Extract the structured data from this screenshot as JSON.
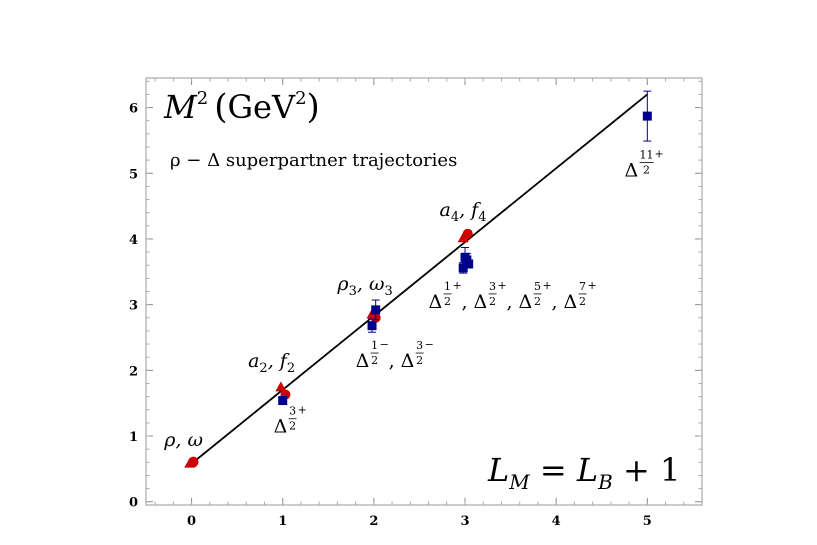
{
  "chart_data": {
    "type": "scatter",
    "title": "M²(GeV²)",
    "title_parts": {
      "symbol": "M",
      "exponent": "2",
      "unit": "GeV",
      "unit_exponent": "2"
    },
    "subtitle": "ρ − Δ superpartner trajectories",
    "formula": {
      "lhs": "L",
      "lhs_sub": "M",
      "equals": " = ",
      "rhs": "L",
      "rhs_sub": "B",
      "plus": " + 1"
    },
    "xlim": [
      -0.5,
      5.6
    ],
    "ylim": [
      -0.05,
      6.45
    ],
    "x_ticks": [
      "0",
      "1",
      "2",
      "3",
      "4",
      "5"
    ],
    "y_ticks": [
      "0",
      "1",
      "2",
      "3",
      "4",
      "5",
      "6"
    ],
    "fit_line": {
      "x": [
        0,
        5
      ],
      "y": [
        0.58,
        6.2
      ]
    },
    "series": [
      {
        "marker": "circle",
        "color": "#cc0000",
        "points": [
          {
            "x": 0.02,
            "y": 0.6
          },
          {
            "x": 0.02,
            "y": 0.61
          },
          {
            "x": 1.03,
            "y": 1.63
          },
          {
            "x": 2.02,
            "y": 2.8
          },
          {
            "x": 3.03,
            "y": 4.08
          }
        ]
      },
      {
        "marker": "triangle",
        "color": "#cc0000",
        "points": [
          {
            "x": -0.02,
            "y": 0.58
          },
          {
            "x": 0.98,
            "y": 1.74
          },
          {
            "x": 1.98,
            "y": 2.85
          },
          {
            "x": 2.98,
            "y": 4.01
          }
        ]
      },
      {
        "marker": "square",
        "color": "#00008b",
        "points": [
          {
            "x": 1.0,
            "y": 1.54,
            "err": 0.03
          },
          {
            "x": 1.98,
            "y": 2.68,
            "err": 0.1
          },
          {
            "x": 2.02,
            "y": 2.92,
            "err": 0.15
          },
          {
            "x": 2.98,
            "y": 3.56,
            "err": 0.08
          },
          {
            "x": 3.0,
            "y": 3.72,
            "err": 0.15
          },
          {
            "x": 3.02,
            "y": 3.68,
            "err": 0.1
          },
          {
            "x": 3.04,
            "y": 3.62,
            "err": 0.06
          },
          {
            "x": 5.0,
            "y": 5.87,
            "err": 0.38
          }
        ]
      }
    ],
    "annotations": [
      {
        "id": "rho-omega",
        "base": "ρ, ω",
        "x": -0.3,
        "y": 0.85
      },
      {
        "id": "a2-f2",
        "parts": [
          "a",
          "2",
          ", f",
          "2"
        ],
        "x": 0.62,
        "y": 2.05
      },
      {
        "id": "rho3-omega3",
        "parts": [
          "ρ",
          "3",
          ", ω",
          "3"
        ],
        "x": 1.6,
        "y": 3.22
      },
      {
        "id": "a4-f4",
        "parts": [
          "a",
          "4",
          ", f",
          "4"
        ],
        "x": 2.72,
        "y": 4.35
      },
      {
        "id": "delta-32p",
        "deltas": [
          {
            "num": "3",
            "sign": "+"
          }
        ],
        "x": 0.9,
        "y": 1.05
      },
      {
        "id": "delta-12m-32m",
        "deltas": [
          {
            "num": "1",
            "sign": "−"
          },
          {
            "num": "3",
            "sign": "−"
          }
        ],
        "x": 1.8,
        "y": 2.05
      },
      {
        "id": "delta-12p-32p-52p-72p",
        "deltas": [
          {
            "num": "1",
            "sign": "+"
          },
          {
            "num": "3",
            "sign": "+"
          },
          {
            "num": "5",
            "sign": "+"
          },
          {
            "num": "7",
            "sign": "+"
          }
        ],
        "x": 2.6,
        "y": 2.95
      },
      {
        "id": "delta-112p",
        "deltas": [
          {
            "num": "11",
            "sign": "+"
          }
        ],
        "x": 4.75,
        "y": 4.95
      }
    ],
    "grid": false,
    "legend": "none"
  },
  "glyphs": {
    "delta": "Δ",
    "denom": "2",
    "sep": ", "
  }
}
